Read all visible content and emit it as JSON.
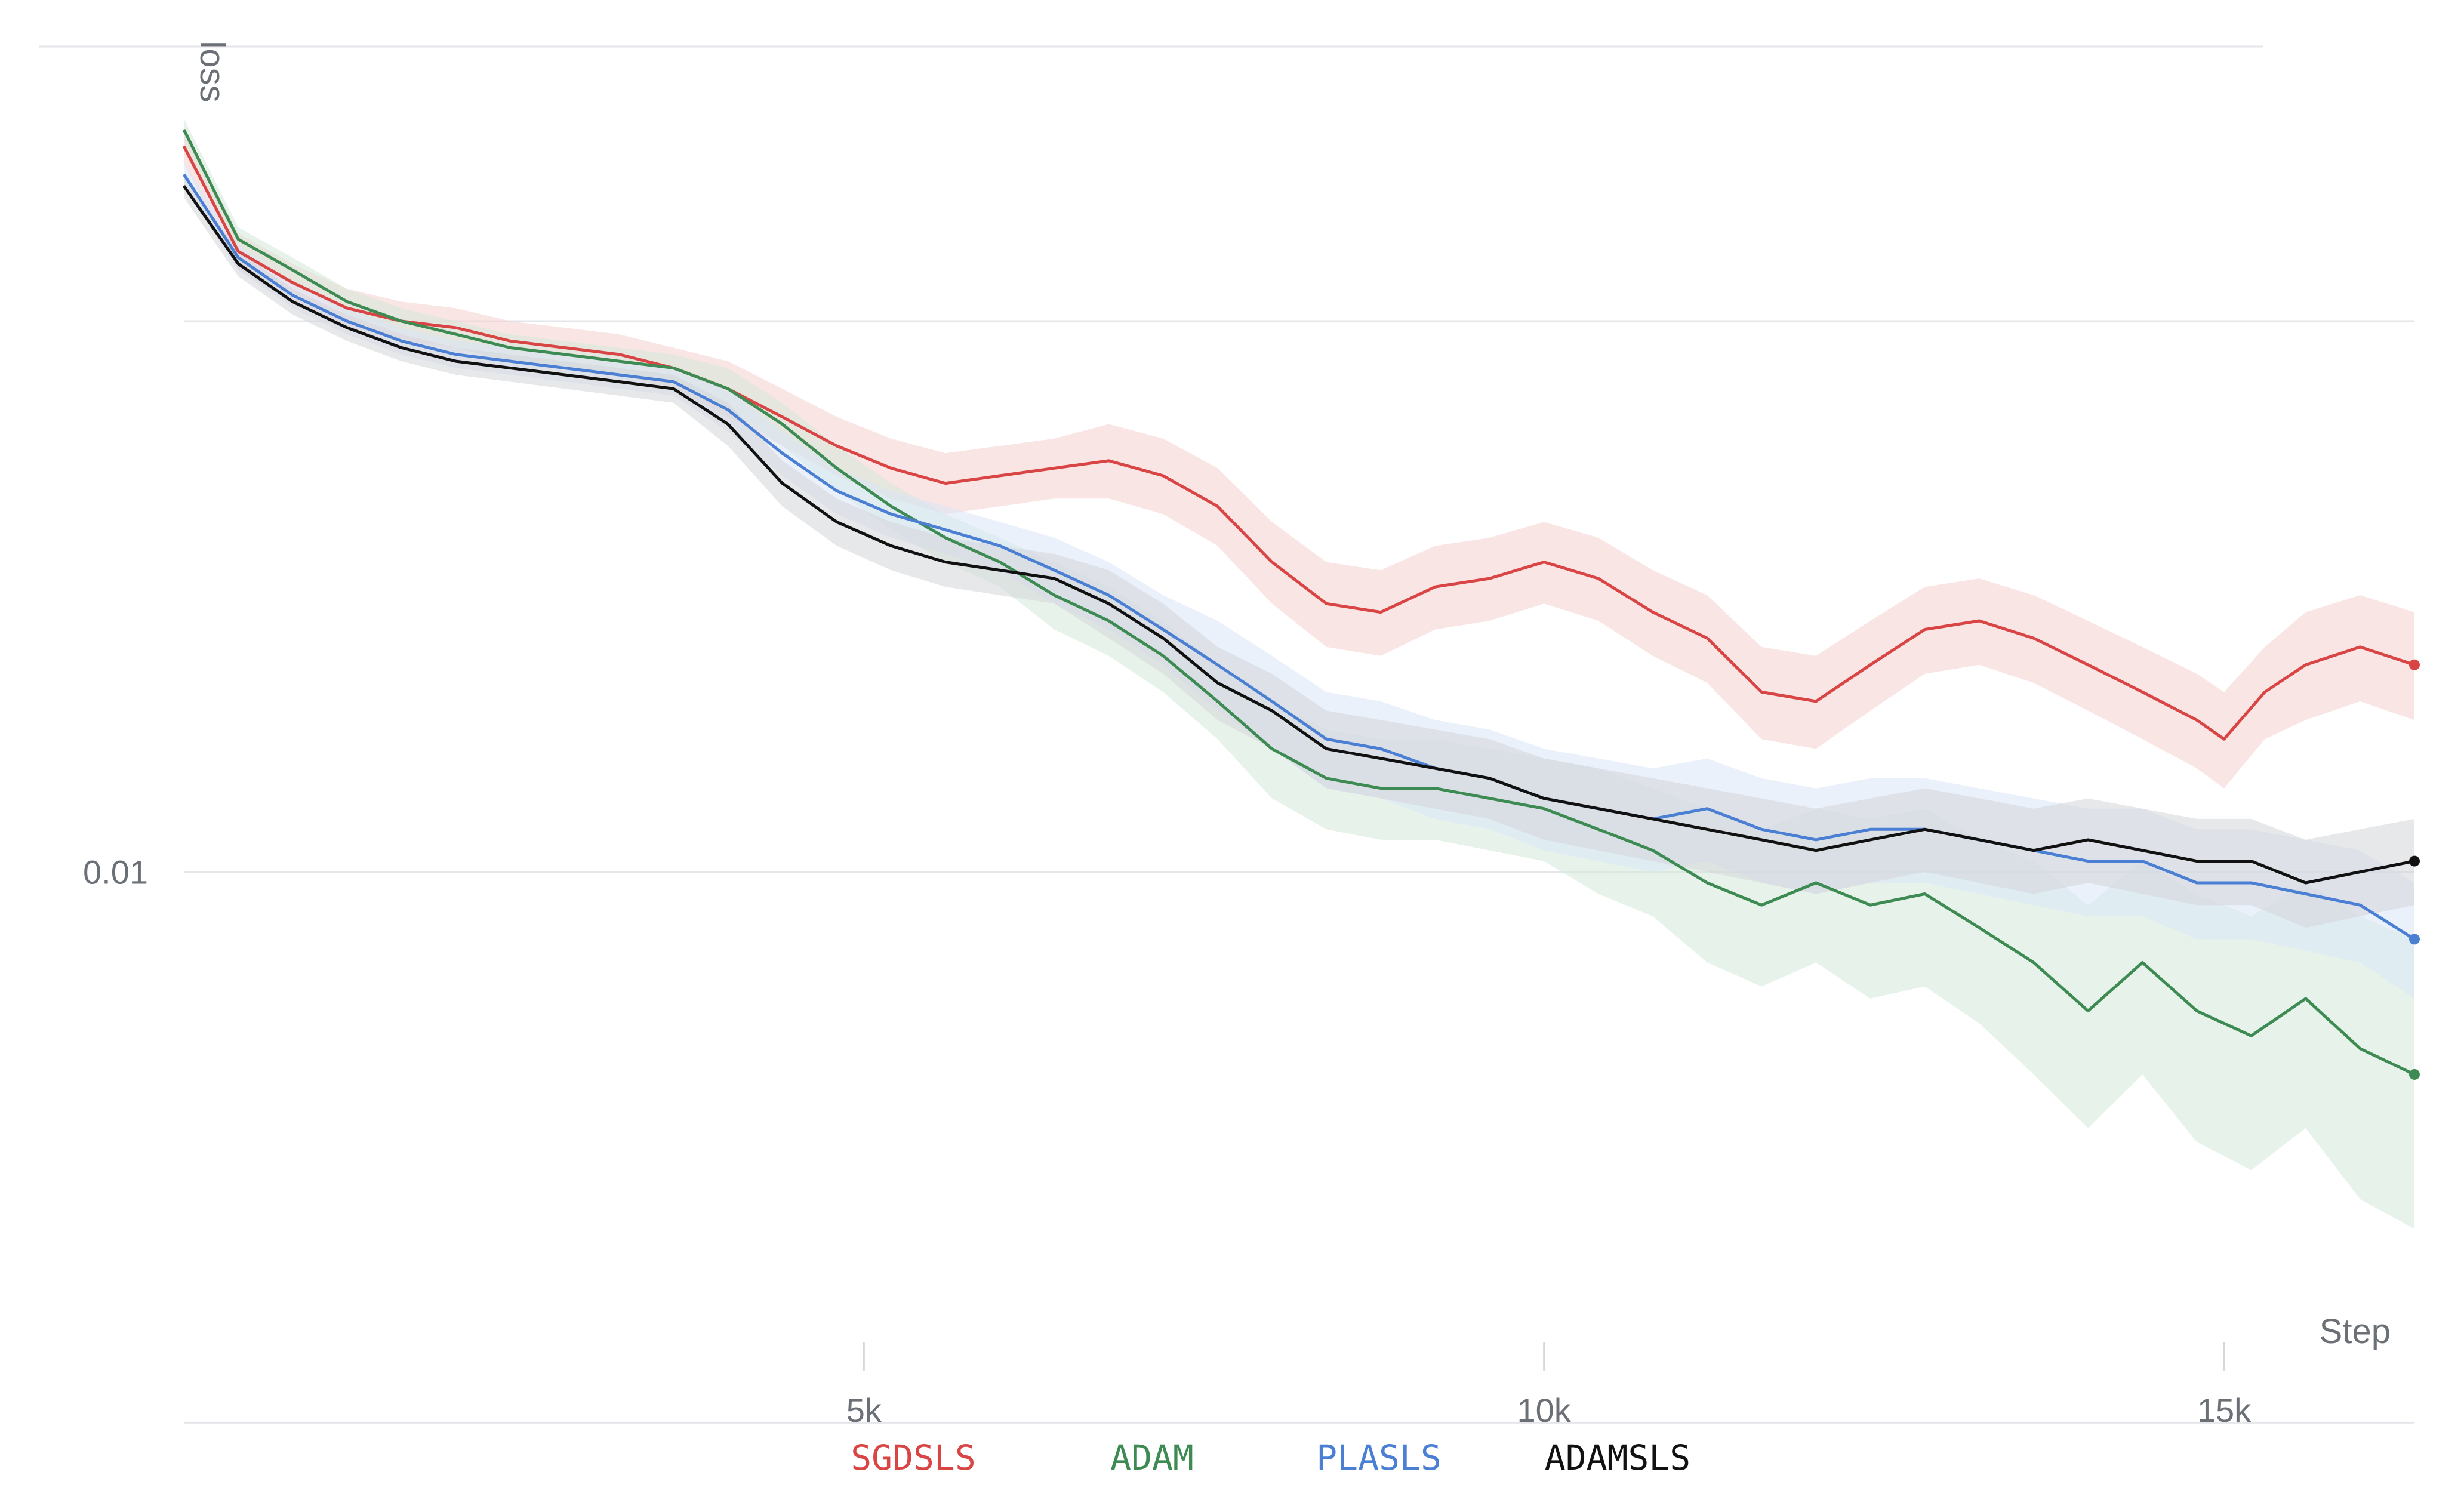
{
  "chart_data": {
    "type": "line",
    "xlabel": "Step",
    "ylabel": "loss",
    "y_scale": "log",
    "x_tick_labels": [
      "5k",
      "10k",
      "15k"
    ],
    "x_ticks": [
      5000,
      10000,
      15000
    ],
    "y_tick_labels": [
      "0.01"
    ],
    "y_ticks": [
      0.01
    ],
    "xlim": [
      0,
      16400
    ],
    "ylim": [
      0.0065,
      0.021
    ],
    "grid": true,
    "legend_position": "bottom-center",
    "series": [
      {
        "name": "SGDSLS",
        "color": "#d94545",
        "band_color": "#f6cfcf",
        "x": [
          0,
          400,
          800,
          1200,
          1600,
          2000,
          2400,
          2800,
          3200,
          3600,
          4000,
          4400,
          4800,
          5200,
          5600,
          6000,
          6400,
          6800,
          7200,
          7600,
          8000,
          8400,
          8800,
          9200,
          9600,
          10000,
          10400,
          10800,
          11200,
          11600,
          12000,
          12400,
          12800,
          13200,
          13600,
          14000,
          14400,
          14800,
          15000,
          15300,
          15600,
          16000,
          16400
        ],
        "y": [
          0.0195,
          0.0177,
          0.0172,
          0.0168,
          0.0166,
          0.0165,
          0.0163,
          0.0162,
          0.0161,
          0.0159,
          0.0156,
          0.0152,
          0.0148,
          0.0145,
          0.0143,
          0.0144,
          0.0145,
          0.0146,
          0.0144,
          0.014,
          0.0133,
          0.0128,
          0.0127,
          0.013,
          0.0131,
          0.0133,
          0.0131,
          0.0127,
          0.0124,
          0.0118,
          0.0117,
          0.0121,
          0.0125,
          0.0126,
          0.0124,
          0.0121,
          0.0118,
          0.0115,
          0.0113,
          0.0118,
          0.0121,
          0.0123,
          0.0121
        ],
        "band_halfwidth": [
          0.0003,
          0.0003,
          0.0003,
          0.0003,
          0.0003,
          0.0003,
          0.0003,
          0.0003,
          0.0003,
          0.0003,
          0.0004,
          0.0004,
          0.0004,
          0.0004,
          0.0004,
          0.0004,
          0.0004,
          0.0005,
          0.0005,
          0.0005,
          0.0005,
          0.0005,
          0.0005,
          0.0005,
          0.0005,
          0.0005,
          0.0005,
          0.0005,
          0.0005,
          0.0005,
          0.0005,
          0.0005,
          0.0005,
          0.0005,
          0.0005,
          0.0005,
          0.0005,
          0.0005,
          0.0005,
          0.0005,
          0.0006,
          0.0006,
          0.0006
        ]
      },
      {
        "name": "ADAM",
        "color": "#3d8b53",
        "band_color": "#d4ead9",
        "x": [
          0,
          400,
          800,
          1200,
          1600,
          2000,
          2400,
          2800,
          3200,
          3600,
          4000,
          4400,
          4800,
          5200,
          5600,
          6000,
          6400,
          6800,
          7200,
          7600,
          8000,
          8400,
          8800,
          9200,
          9600,
          10000,
          10400,
          10800,
          11200,
          11600,
          12000,
          12400,
          12800,
          13200,
          13600,
          14000,
          14400,
          14800,
          15200,
          15600,
          16000,
          16400
        ],
        "y": [
          0.0198,
          0.0179,
          0.0174,
          0.0169,
          0.0166,
          0.0164,
          0.0162,
          0.0161,
          0.016,
          0.0159,
          0.0156,
          0.0151,
          0.0145,
          0.014,
          0.0136,
          0.0133,
          0.0129,
          0.0126,
          0.0122,
          0.0117,
          0.0112,
          0.0109,
          0.0108,
          0.0108,
          0.0107,
          0.0106,
          0.0104,
          0.0102,
          0.0099,
          0.0097,
          0.0099,
          0.0097,
          0.0098,
          0.0095,
          0.0092,
          0.0088,
          0.0092,
          0.0088,
          0.0086,
          0.0089,
          0.0085,
          0.0083
        ],
        "band_halfwidth": [
          0.0002,
          0.0002,
          0.0002,
          0.0002,
          0.0002,
          0.0002,
          0.0002,
          0.0002,
          0.0002,
          0.0002,
          0.0003,
          0.0003,
          0.0003,
          0.0003,
          0.0003,
          0.0003,
          0.0004,
          0.0004,
          0.0004,
          0.0004,
          0.0005,
          0.0005,
          0.0005,
          0.0005,
          0.0005,
          0.0005,
          0.0006,
          0.0006,
          0.0007,
          0.0007,
          0.0007,
          0.0008,
          0.0008,
          0.0008,
          0.0009,
          0.0009,
          0.0009,
          0.001,
          0.001,
          0.001,
          0.0011,
          0.0011
        ]
      },
      {
        "name": "PLASLS",
        "color": "#4a7fd4",
        "band_color": "#d8e6f8",
        "x": [
          0,
          400,
          800,
          1200,
          1600,
          2000,
          2400,
          2800,
          3200,
          3600,
          4000,
          4400,
          4800,
          5200,
          5600,
          6000,
          6400,
          6800,
          7200,
          7600,
          8000,
          8400,
          8800,
          9200,
          9600,
          10000,
          10400,
          10800,
          11200,
          11600,
          12000,
          12400,
          12800,
          13200,
          13600,
          14000,
          14400,
          14800,
          15200,
          15600,
          16000,
          16400
        ],
        "y": [
          0.019,
          0.0176,
          0.017,
          0.0166,
          0.0163,
          0.0161,
          0.016,
          0.0159,
          0.0158,
          0.0157,
          0.0153,
          0.0147,
          0.0142,
          0.0139,
          0.0137,
          0.0135,
          0.0132,
          0.0129,
          0.0125,
          0.0121,
          0.0117,
          0.0113,
          0.0112,
          0.011,
          0.0109,
          0.0107,
          0.0106,
          0.0105,
          0.0106,
          0.0104,
          0.0103,
          0.0104,
          0.0104,
          0.0103,
          0.0102,
          0.0101,
          0.0101,
          0.0099,
          0.0099,
          0.0098,
          0.0097,
          0.0094
        ],
        "band_halfwidth": [
          0.0002,
          0.0002,
          0.0002,
          0.0002,
          0.0002,
          0.0002,
          0.0002,
          0.0002,
          0.0002,
          0.0002,
          0.0003,
          0.0003,
          0.0003,
          0.0003,
          0.0003,
          0.0003,
          0.0004,
          0.0004,
          0.0004,
          0.0005,
          0.0005,
          0.0005,
          0.0005,
          0.0005,
          0.0005,
          0.0005,
          0.0005,
          0.0005,
          0.0005,
          0.0005,
          0.0005,
          0.0005,
          0.0005,
          0.0005,
          0.0005,
          0.0005,
          0.0005,
          0.0005,
          0.0005,
          0.0005,
          0.0005,
          0.0005
        ]
      },
      {
        "name": "ADAMSLS",
        "color": "#111111",
        "band_color": "#d3d5d9",
        "x": [
          0,
          400,
          800,
          1200,
          1600,
          2000,
          2400,
          2800,
          3200,
          3600,
          4000,
          4400,
          4800,
          5200,
          5600,
          6000,
          6400,
          6800,
          7200,
          7600,
          8000,
          8400,
          8800,
          9200,
          9600,
          10000,
          10400,
          10800,
          11200,
          11600,
          12000,
          12400,
          12800,
          13200,
          13600,
          14000,
          14400,
          14800,
          15200,
          15600,
          16000,
          16400
        ],
        "y": [
          0.0188,
          0.0175,
          0.0169,
          0.0165,
          0.0162,
          0.016,
          0.0159,
          0.0158,
          0.0157,
          0.0156,
          0.0151,
          0.0143,
          0.0138,
          0.0135,
          0.0133,
          0.0132,
          0.0131,
          0.0128,
          0.0124,
          0.0119,
          0.0116,
          0.0112,
          0.0111,
          0.011,
          0.0109,
          0.0107,
          0.0106,
          0.0105,
          0.0104,
          0.0103,
          0.0102,
          0.0103,
          0.0104,
          0.0103,
          0.0102,
          0.0103,
          0.0102,
          0.0101,
          0.0101,
          0.0099,
          0.01,
          0.0101
        ],
        "band_halfwidth": [
          0.0002,
          0.0002,
          0.0002,
          0.0002,
          0.0002,
          0.0002,
          0.0002,
          0.0002,
          0.0002,
          0.0002,
          0.0003,
          0.0003,
          0.0003,
          0.0003,
          0.0003,
          0.0003,
          0.0003,
          0.0004,
          0.0004,
          0.0004,
          0.0004,
          0.0004,
          0.0004,
          0.0004,
          0.0004,
          0.0004,
          0.0004,
          0.0004,
          0.0004,
          0.0004,
          0.0004,
          0.0004,
          0.0004,
          0.0004,
          0.0004,
          0.0004,
          0.0004,
          0.0004,
          0.0004,
          0.0004,
          0.0004,
          0.0004
        ]
      }
    ]
  }
}
